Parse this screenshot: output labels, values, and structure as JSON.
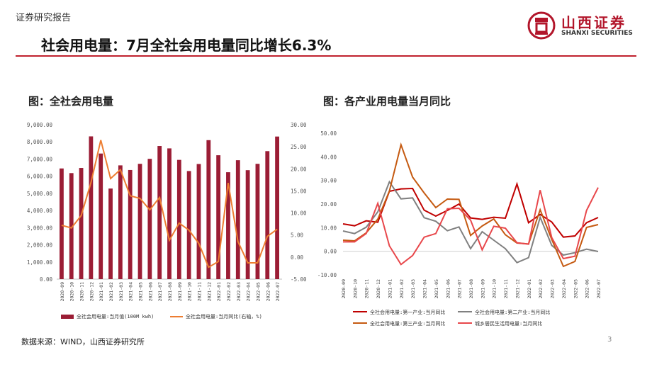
{
  "header": {
    "report_label": "证券研究报告",
    "title": "社会用电量：7月全社会用电量同比增长6.3%",
    "logo_cn": "山西证券",
    "logo_en": "SHANXI SECURITIES"
  },
  "footer": {
    "source": "数据来源：WIND，山西证券研究所",
    "page_number": "3"
  },
  "colors": {
    "brand_red": "#b2152a",
    "bar": "#9b1d35",
    "orange": "#ed7d31",
    "red": "#c00000",
    "gray": "#808080",
    "dark_orange": "#c55a11",
    "light_red": "#e8474b"
  },
  "chart_data": [
    {
      "type": "bar",
      "title": "图：全社会用电量",
      "categories": [
        "2020-09",
        "2020-10",
        "2020-11",
        "2020-12",
        "2021-01",
        "2021-02",
        "2021-03",
        "2021-04",
        "2021-05",
        "2021-06",
        "2021-07",
        "2021-08",
        "2021-09",
        "2021-10",
        "2021-11",
        "2021-12",
        "2022-01",
        "2022-02",
        "2022-03",
        "2022-04",
        "2022-05",
        "2022-06",
        "2022-07"
      ],
      "left_ticks": [
        "9,000.00",
        "8,000.00",
        "7,000.00",
        "6,000.00",
        "5,000.00",
        "4,000.00",
        "3,000.00",
        "2,000.00",
        "1,000.00",
        "0.00"
      ],
      "right_ticks": [
        "30.00",
        "25.00",
        "20.00",
        "15.00",
        "10.00",
        "5.00",
        "0.00",
        "-5.00"
      ],
      "ylim_left": [
        0,
        9000
      ],
      "ylim_right": [
        -5,
        30
      ],
      "series": [
        {
          "name": "全社会用电量:当月值(100M kwh)",
          "axis": "left",
          "kind": "bar",
          "values": [
            6450,
            6180,
            6480,
            8320,
            7320,
            5280,
            6630,
            6360,
            6720,
            7010,
            7760,
            7620,
            6950,
            6300,
            6710,
            8100,
            7220,
            6230,
            6930,
            6350,
            6720,
            7460,
            8310
          ]
        },
        {
          "name": "全社会用电量:当月同比(右轴，%)",
          "axis": "right",
          "kind": "line",
          "values": [
            7.2,
            6.6,
            9.4,
            16.9,
            26.5,
            17.8,
            19.8,
            13.9,
            13.3,
            10.7,
            13.5,
            3.8,
            7.7,
            6.1,
            3.1,
            -2.3,
            -1.0,
            16.8,
            3.5,
            -1.3,
            -1.3,
            4.7,
            6.3
          ]
        }
      ]
    },
    {
      "type": "line",
      "title": "图：各产业用电量当月同比",
      "categories": [
        "2020-09",
        "2020-10",
        "2020-11",
        "2020-12",
        "2021-01",
        "2021-02",
        "2021-03",
        "2021-04",
        "2021-05",
        "2021-06",
        "2021-07",
        "2021-08",
        "2021-09",
        "2021-10",
        "2021-11",
        "2021-12",
        "2022-01",
        "2022-02",
        "2022-03",
        "2022-04",
        "2022-05",
        "2022-06",
        "2022-07"
      ],
      "y_ticks": [
        "50.00",
        "40.00",
        "30.00",
        "20.00",
        "10.00",
        "0.00",
        "-10.00"
      ],
      "ylim": [
        -10,
        50
      ],
      "series": [
        {
          "name": "全社会用电量:第一产业:当月同比",
          "color_key": "red",
          "values": [
            11.6,
            10.8,
            12.9,
            12.3,
            25.4,
            26.4,
            26.6,
            17.4,
            14.9,
            17.3,
            20.0,
            14.1,
            13.5,
            14.4,
            14.0,
            28.5,
            12.1,
            15.6,
            12.4,
            6.0,
            6.5,
            12.1,
            14.3
          ]
        },
        {
          "name": "全社会用电量:第二产业:当月同比",
          "color_key": "gray",
          "values": [
            8.6,
            7.5,
            10.2,
            16.7,
            29.4,
            22.2,
            22.6,
            14.2,
            12.7,
            8.7,
            10.3,
            1.1,
            8.3,
            4.7,
            1.1,
            -4.8,
            -2.7,
            14.4,
            2.5,
            -1.6,
            -0.6,
            0.9,
            -0.1
          ]
        },
        {
          "name": "全社会用电量:第三产业:当月同比",
          "color_key": "dark_orange",
          "values": [
            4.7,
            4.4,
            7.8,
            13.6,
            25.5,
            45.1,
            31.4,
            24.7,
            18.5,
            22.1,
            22.0,
            6.7,
            10.7,
            13.7,
            7.0,
            3.5,
            3.1,
            17.6,
            5.0,
            -6.4,
            -4.3,
            10.1,
            11.3
          ]
        },
        {
          "name": "城乡居民生活用电量:当月同比",
          "color_key": "light_red",
          "values": [
            4.0,
            4.0,
            7.5,
            20.3,
            2.3,
            -5.6,
            -1.8,
            6.0,
            7.5,
            18.0,
            18.2,
            13.2,
            0.6,
            10.6,
            9.8,
            3.6,
            3.0,
            25.9,
            5.8,
            -3.1,
            -2.1,
            17.3,
            27.0
          ]
        }
      ]
    }
  ]
}
